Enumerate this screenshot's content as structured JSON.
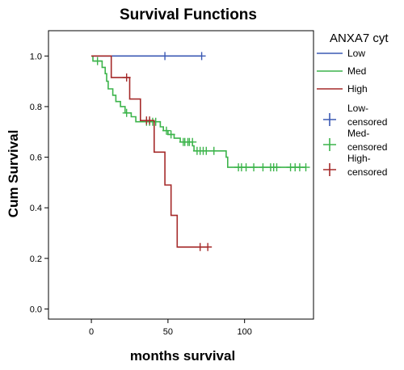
{
  "chart_data": {
    "type": "line",
    "title": "Survival Functions",
    "xlabel": "months survival",
    "ylabel": "Cum Survival",
    "xlim": [
      -28,
      145
    ],
    "ylim": [
      -0.04,
      1.1
    ],
    "x_ticks": [
      0,
      50,
      100
    ],
    "y_ticks": [
      0.0,
      0.2,
      0.4,
      0.6,
      0.8,
      1.0
    ],
    "y_tick_labels": [
      "0.0",
      "0.2",
      "0.4",
      "0.6",
      "0.8",
      "1.0"
    ],
    "grid": false,
    "legend": {
      "position": "right",
      "title": "ANXA7 cyt",
      "entries": [
        {
          "label": [
            "Low"
          ],
          "color": "#3c5ab4",
          "kind": "line"
        },
        {
          "label": [
            "Med"
          ],
          "color": "#3cb44b",
          "kind": "line"
        },
        {
          "label": [
            "High"
          ],
          "color": "#a52a2a",
          "kind": "line"
        },
        {
          "label": [
            "Low-",
            "censored"
          ],
          "color": "#3c5ab4",
          "kind": "plus"
        },
        {
          "label": [
            "Med-",
            "censored"
          ],
          "color": "#3cb44b",
          "kind": "plus"
        },
        {
          "label": [
            "High-",
            "censored"
          ],
          "color": "#a52a2a",
          "kind": "plus"
        }
      ]
    },
    "series": [
      {
        "name": "Low",
        "color": "#3c5ab4",
        "steps": [
          [
            0,
            1.0
          ],
          [
            72,
            1.0
          ]
        ],
        "censored": [
          [
            48,
            1.0
          ],
          [
            72,
            1.0
          ]
        ]
      },
      {
        "name": "Med",
        "color": "#3cb44b",
        "steps": [
          [
            0,
            1.0
          ],
          [
            1,
            0.98
          ],
          [
            6,
            0.98
          ],
          [
            7,
            0.955
          ],
          [
            9,
            0.93
          ],
          [
            10,
            0.9
          ],
          [
            11,
            0.87
          ],
          [
            14,
            0.845
          ],
          [
            16,
            0.82
          ],
          [
            19,
            0.8
          ],
          [
            21,
            0.8
          ],
          [
            22,
            0.775
          ],
          [
            25,
            0.775
          ],
          [
            26,
            0.76
          ],
          [
            29,
            0.74
          ],
          [
            44,
            0.74
          ],
          [
            45,
            0.72
          ],
          [
            47,
            0.705
          ],
          [
            50,
            0.69
          ],
          [
            54,
            0.675
          ],
          [
            58,
            0.66
          ],
          [
            66,
            0.645
          ],
          [
            67,
            0.625
          ],
          [
            88,
            0.6
          ],
          [
            89,
            0.56
          ],
          [
            140,
            0.56
          ]
        ],
        "censored": [
          [
            4,
            0.98
          ],
          [
            23,
            0.775
          ],
          [
            36,
            0.74
          ],
          [
            38,
            0.74
          ],
          [
            40,
            0.74
          ],
          [
            42,
            0.74
          ],
          [
            49,
            0.705
          ],
          [
            52,
            0.69
          ],
          [
            60,
            0.66
          ],
          [
            61,
            0.66
          ],
          [
            63,
            0.66
          ],
          [
            64,
            0.66
          ],
          [
            66,
            0.66
          ],
          [
            69,
            0.625
          ],
          [
            71,
            0.625
          ],
          [
            73,
            0.625
          ],
          [
            75,
            0.625
          ],
          [
            80,
            0.625
          ],
          [
            96,
            0.56
          ],
          [
            98,
            0.56
          ],
          [
            101,
            0.56
          ],
          [
            106,
            0.56
          ],
          [
            112,
            0.56
          ],
          [
            117,
            0.56
          ],
          [
            119,
            0.56
          ],
          [
            121,
            0.56
          ],
          [
            130,
            0.56
          ],
          [
            133,
            0.56
          ],
          [
            136,
            0.56
          ],
          [
            140,
            0.56
          ]
        ]
      },
      {
        "name": "High",
        "color": "#a52a2a",
        "steps": [
          [
            0,
            1.0
          ],
          [
            12,
            1.0
          ],
          [
            13,
            0.915
          ],
          [
            24,
            0.915
          ],
          [
            25,
            0.83
          ],
          [
            31,
            0.83
          ],
          [
            32,
            0.745
          ],
          [
            40,
            0.745
          ],
          [
            41,
            0.62
          ],
          [
            47,
            0.62
          ],
          [
            48,
            0.49
          ],
          [
            51,
            0.49
          ],
          [
            52,
            0.37
          ],
          [
            55,
            0.37
          ],
          [
            56,
            0.245
          ],
          [
            76,
            0.245
          ]
        ],
        "censored": [
          [
            23,
            0.915
          ],
          [
            36,
            0.745
          ],
          [
            38,
            0.745
          ],
          [
            71,
            0.245
          ],
          [
            76,
            0.245
          ]
        ]
      }
    ]
  }
}
